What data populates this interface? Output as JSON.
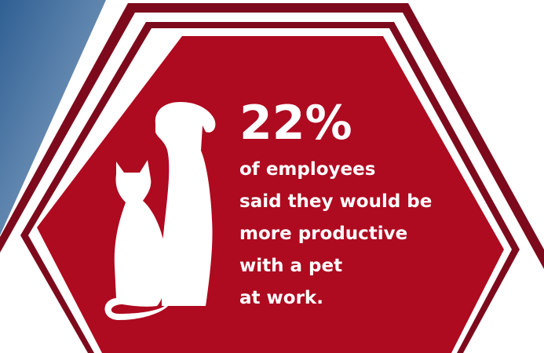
{
  "stat": "22%",
  "text_lines": [
    "of employees",
    "said they would be",
    "more productive",
    "with a pet",
    "at work."
  ]
}
